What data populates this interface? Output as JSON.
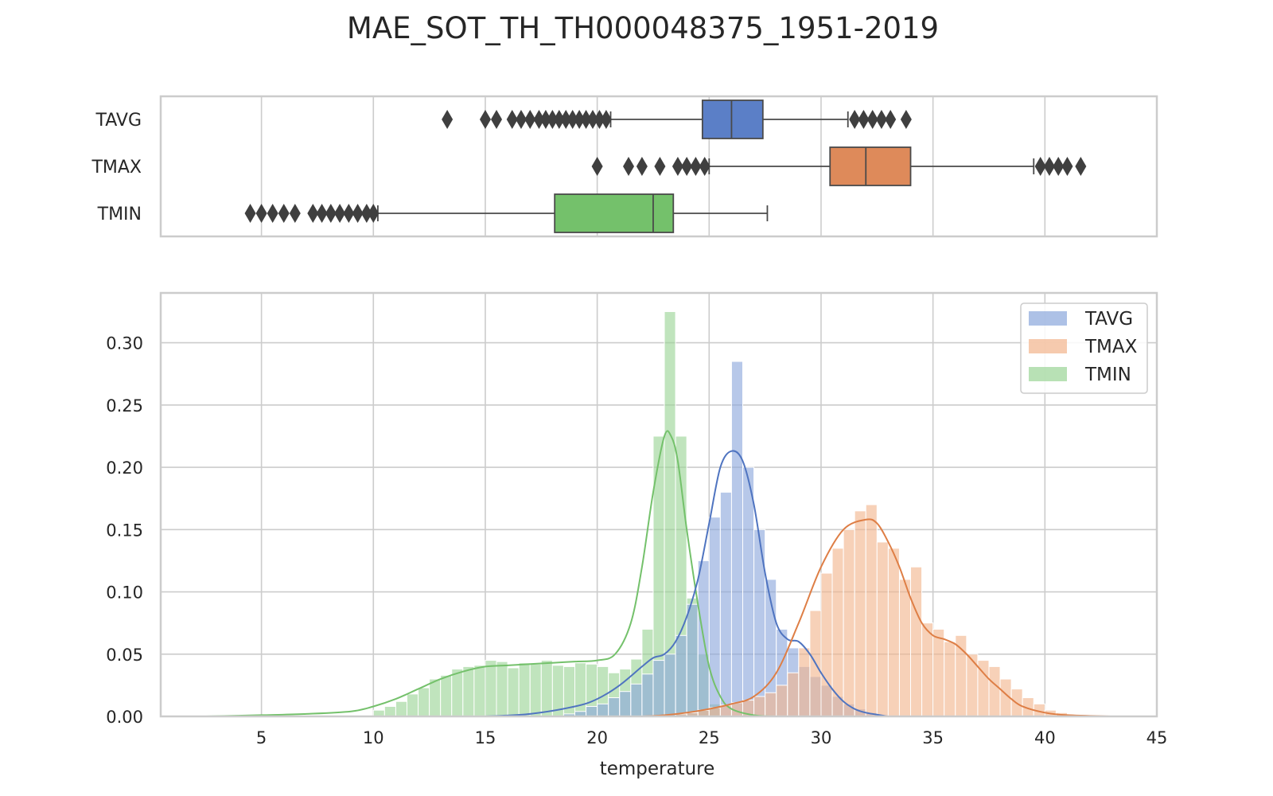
{
  "chart_data": [
    {
      "type": "box",
      "title": "MAE_SOT_TH_TH000048375_1951-2019",
      "xlim": [
        0.5,
        45
      ],
      "grid": true,
      "categories": [
        "TAVG",
        "TMAX",
        "TMIN"
      ],
      "boxes": [
        {
          "name": "TAVG",
          "color": "#5b7fc7",
          "q1": 24.7,
          "median": 26.0,
          "q3": 27.4,
          "whisker_low": 20.6,
          "whisker_high": 31.2,
          "outliers": [
            13.3,
            15.0,
            15.5,
            16.2,
            16.6,
            17.0,
            17.4,
            17.7,
            18.0,
            18.3,
            18.6,
            18.9,
            19.2,
            19.5,
            19.8,
            20.1,
            20.4,
            31.5,
            31.9,
            32.3,
            32.7,
            33.1,
            33.8
          ]
        },
        {
          "name": "TMAX",
          "color": "#de8a5a",
          "q1": 30.4,
          "median": 32.0,
          "q3": 34.0,
          "whisker_low": 25.0,
          "whisker_high": 39.5,
          "outliers": [
            20.0,
            21.4,
            22.0,
            22.8,
            23.6,
            24.0,
            24.4,
            24.8,
            39.8,
            40.2,
            40.6,
            41.0,
            41.6
          ]
        },
        {
          "name": "TMIN",
          "color": "#74c16b",
          "q1": 18.1,
          "median": 22.5,
          "q3": 23.4,
          "whisker_low": 10.2,
          "whisker_high": 27.6,
          "outliers": [
            4.5,
            5.0,
            5.5,
            6.0,
            6.5,
            7.3,
            7.7,
            8.1,
            8.5,
            8.9,
            9.3,
            9.7,
            10.0
          ]
        }
      ]
    },
    {
      "type": "histogram",
      "xlabel": "temperature",
      "ylabel": "",
      "xlim": [
        0.5,
        45
      ],
      "ylim": [
        0,
        0.34
      ],
      "xticks": [
        5,
        10,
        15,
        20,
        25,
        30,
        35,
        40,
        45
      ],
      "xtick_labels": [
        "5",
        "10",
        "15",
        "20",
        "25",
        "30",
        "35",
        "40",
        "45"
      ],
      "yticks": [
        0,
        0.05,
        0.1,
        0.15,
        0.2,
        0.25,
        0.3
      ],
      "ytick_labels": [
        "0.00",
        "0.05",
        "0.10",
        "0.15",
        "0.20",
        "0.25",
        "0.30"
      ],
      "grid": true,
      "legend_position": "top-right",
      "series": [
        {
          "name": "TMIN",
          "color": "#74c16b",
          "bar_color": "#9ad495",
          "bin_width": 0.5,
          "bins": [
            [
              10.0,
              0.005
            ],
            [
              10.5,
              0.008
            ],
            [
              11.0,
              0.012
            ],
            [
              11.5,
              0.018
            ],
            [
              12.0,
              0.023
            ],
            [
              12.5,
              0.03
            ],
            [
              13.0,
              0.033
            ],
            [
              13.5,
              0.038
            ],
            [
              14.0,
              0.04
            ],
            [
              14.5,
              0.041
            ],
            [
              15.0,
              0.045
            ],
            [
              15.5,
              0.044
            ],
            [
              16.0,
              0.039
            ],
            [
              16.5,
              0.043
            ],
            [
              17.0,
              0.042
            ],
            [
              17.5,
              0.045
            ],
            [
              18.0,
              0.041
            ],
            [
              18.5,
              0.04
            ],
            [
              19.0,
              0.043
            ],
            [
              19.5,
              0.042
            ],
            [
              20.0,
              0.04
            ],
            [
              20.5,
              0.035
            ],
            [
              21.0,
              0.038
            ],
            [
              21.5,
              0.046
            ],
            [
              22.0,
              0.07
            ],
            [
              22.5,
              0.225
            ],
            [
              23.0,
              0.325
            ],
            [
              23.5,
              0.225
            ],
            [
              24.0,
              0.095
            ],
            [
              24.5,
              0.05
            ],
            [
              25.0,
              0.01
            ]
          ],
          "kde": [
            [
              2.5,
              0.0
            ],
            [
              5,
              0.001
            ],
            [
              7,
              0.002
            ],
            [
              9,
              0.004
            ],
            [
              10,
              0.008
            ],
            [
              11,
              0.014
            ],
            [
              12,
              0.022
            ],
            [
              13,
              0.03
            ],
            [
              14,
              0.036
            ],
            [
              15,
              0.04
            ],
            [
              16,
              0.041
            ],
            [
              17,
              0.042
            ],
            [
              18,
              0.043
            ],
            [
              19,
              0.044
            ],
            [
              20,
              0.045
            ],
            [
              20.8,
              0.05
            ],
            [
              21.5,
              0.075
            ],
            [
              22.0,
              0.12
            ],
            [
              22.5,
              0.18
            ],
            [
              23.0,
              0.225
            ],
            [
              23.3,
              0.225
            ],
            [
              23.6,
              0.205
            ],
            [
              24.0,
              0.15
            ],
            [
              24.5,
              0.09
            ],
            [
              25.0,
              0.04
            ],
            [
              25.5,
              0.016
            ],
            [
              26.0,
              0.006
            ],
            [
              27.0,
              0.001
            ],
            [
              28,
              0.0
            ]
          ]
        },
        {
          "name": "TAVG",
          "color": "#4f74c0",
          "bar_color": "#8aa7dc",
          "bin_width": 0.5,
          "bins": [
            [
              18.5,
              0.002
            ],
            [
              19.0,
              0.004
            ],
            [
              19.5,
              0.008
            ],
            [
              20.0,
              0.01
            ],
            [
              20.5,
              0.015
            ],
            [
              21.0,
              0.02
            ],
            [
              21.5,
              0.026
            ],
            [
              22.0,
              0.034
            ],
            [
              22.5,
              0.045
            ],
            [
              23.0,
              0.05
            ],
            [
              23.5,
              0.065
            ],
            [
              24.0,
              0.09
            ],
            [
              24.5,
              0.125
            ],
            [
              25.0,
              0.16
            ],
            [
              25.5,
              0.18
            ],
            [
              26.0,
              0.285
            ],
            [
              26.5,
              0.2
            ],
            [
              27.0,
              0.15
            ],
            [
              27.5,
              0.11
            ],
            [
              28.0,
              0.07
            ],
            [
              28.5,
              0.055
            ],
            [
              29.0,
              0.04
            ],
            [
              29.5,
              0.032
            ],
            [
              30.0,
              0.025
            ],
            [
              30.5,
              0.016
            ],
            [
              31.0,
              0.01
            ],
            [
              31.5,
              0.006
            ],
            [
              32.0,
              0.003
            ]
          ],
          "kde": [
            [
              15,
              0.0
            ],
            [
              17,
              0.002
            ],
            [
              19,
              0.008
            ],
            [
              20,
              0.014
            ],
            [
              21,
              0.025
            ],
            [
              22,
              0.04
            ],
            [
              22.5,
              0.047
            ],
            [
              23,
              0.05
            ],
            [
              23.5,
              0.06
            ],
            [
              24,
              0.08
            ],
            [
              24.5,
              0.11
            ],
            [
              25,
              0.155
            ],
            [
              25.5,
              0.2
            ],
            [
              26,
              0.213
            ],
            [
              26.5,
              0.205
            ],
            [
              27,
              0.17
            ],
            [
              27.5,
              0.115
            ],
            [
              28,
              0.075
            ],
            [
              28.5,
              0.062
            ],
            [
              29,
              0.06
            ],
            [
              29.5,
              0.05
            ],
            [
              30,
              0.035
            ],
            [
              30.5,
              0.022
            ],
            [
              31,
              0.012
            ],
            [
              31.5,
              0.006
            ],
            [
              32,
              0.003
            ],
            [
              33,
              0.0
            ]
          ]
        },
        {
          "name": "TMAX",
          "color": "#de7e45",
          "bar_color": "#f2b48c",
          "bin_width": 0.5,
          "bins": [
            [
              23.5,
              0.002
            ],
            [
              24.0,
              0.003
            ],
            [
              24.5,
              0.005
            ],
            [
              25.0,
              0.007
            ],
            [
              25.5,
              0.009
            ],
            [
              26.0,
              0.011
            ],
            [
              26.5,
              0.013
            ],
            [
              27.0,
              0.016
            ],
            [
              27.5,
              0.019
            ],
            [
              28.0,
              0.025
            ],
            [
              28.5,
              0.035
            ],
            [
              29.0,
              0.055
            ],
            [
              29.5,
              0.085
            ],
            [
              30.0,
              0.115
            ],
            [
              30.5,
              0.135
            ],
            [
              31.0,
              0.15
            ],
            [
              31.5,
              0.165
            ],
            [
              32.0,
              0.17
            ],
            [
              32.5,
              0.14
            ],
            [
              33.0,
              0.135
            ],
            [
              33.5,
              0.11
            ],
            [
              34.0,
              0.12
            ],
            [
              34.5,
              0.075
            ],
            [
              35.0,
              0.07
            ],
            [
              35.5,
              0.06
            ],
            [
              36.0,
              0.065
            ],
            [
              36.5,
              0.05
            ],
            [
              37.0,
              0.045
            ],
            [
              37.5,
              0.04
            ],
            [
              38.0,
              0.03
            ],
            [
              38.5,
              0.022
            ],
            [
              39.0,
              0.015
            ],
            [
              39.5,
              0.01
            ],
            [
              40.0,
              0.005
            ],
            [
              40.5,
              0.003
            ],
            [
              41.0,
              0.001
            ]
          ],
          "kde": [
            [
              22,
              0.0
            ],
            [
              23,
              0.001
            ],
            [
              24,
              0.003
            ],
            [
              25,
              0.006
            ],
            [
              26,
              0.01
            ],
            [
              27,
              0.016
            ],
            [
              28,
              0.035
            ],
            [
              29,
              0.075
            ],
            [
              30,
              0.12
            ],
            [
              31,
              0.15
            ],
            [
              32,
              0.158
            ],
            [
              32.5,
              0.155
            ],
            [
              33,
              0.14
            ],
            [
              33.5,
              0.12
            ],
            [
              34,
              0.095
            ],
            [
              34.5,
              0.075
            ],
            [
              35,
              0.065
            ],
            [
              35.5,
              0.062
            ],
            [
              36,
              0.058
            ],
            [
              36.5,
              0.05
            ],
            [
              37,
              0.04
            ],
            [
              37.5,
              0.03
            ],
            [
              38,
              0.022
            ],
            [
              38.5,
              0.014
            ],
            [
              39,
              0.008
            ],
            [
              40,
              0.003
            ],
            [
              41,
              0.001
            ],
            [
              43,
              0.0
            ]
          ]
        }
      ],
      "legend": [
        {
          "name": "TAVG",
          "color": "#8aa7dc"
        },
        {
          "name": "TMAX",
          "color": "#f2b48c"
        },
        {
          "name": "TMIN",
          "color": "#9ad495"
        }
      ]
    }
  ]
}
